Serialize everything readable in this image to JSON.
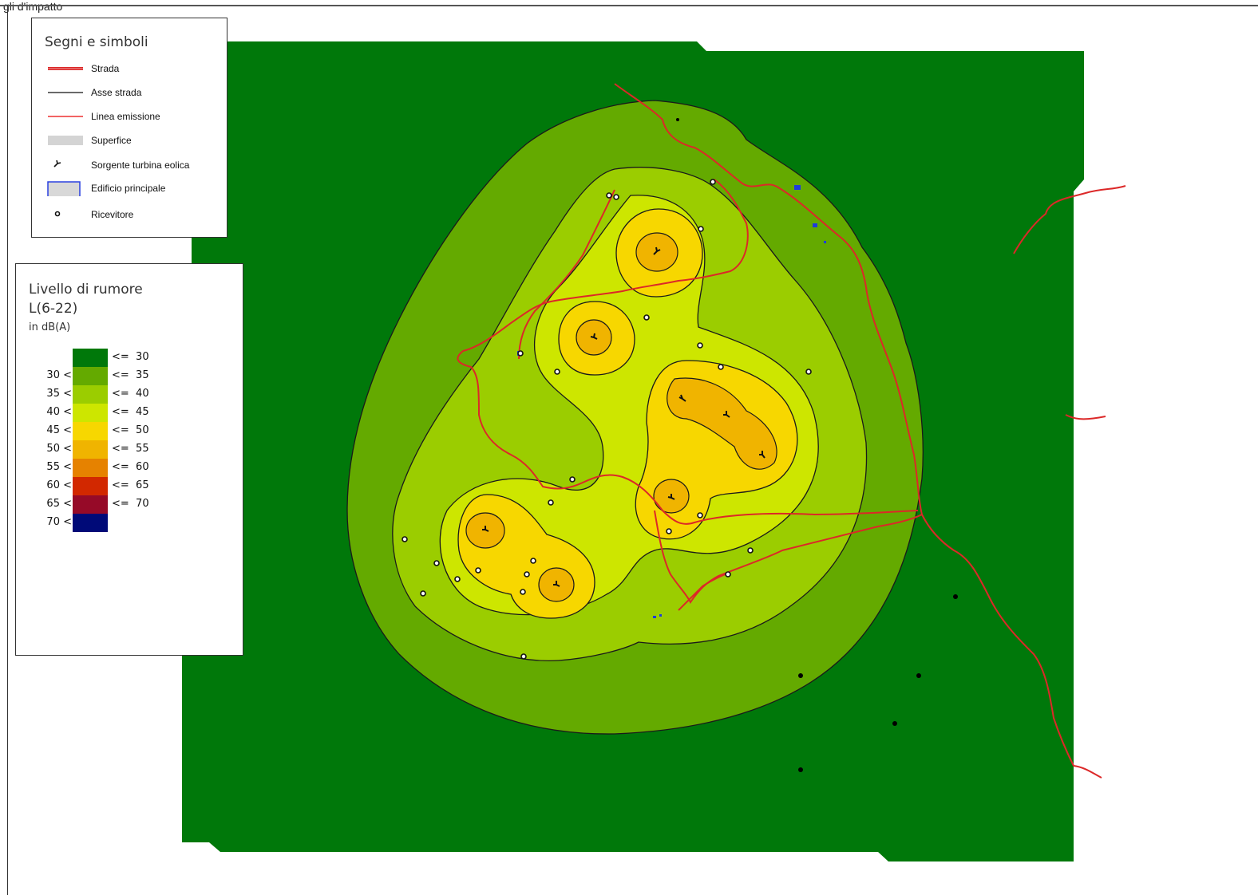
{
  "window": {
    "caption": "gli d'impatto"
  },
  "symbols_legend": {
    "title": "Segni e simboli",
    "items": [
      {
        "key": "road",
        "label": "Strada"
      },
      {
        "key": "road_axis",
        "label": "Asse strada"
      },
      {
        "key": "emission_line",
        "label": "Linea emissione"
      },
      {
        "key": "surface",
        "label": "Superfice"
      },
      {
        "key": "wind_turbine",
        "label": "Sorgente turbina eolica"
      },
      {
        "key": "main_building",
        "label": "Edificio principale"
      },
      {
        "key": "receiver",
        "label": "Ricevitore"
      }
    ]
  },
  "noise_legend": {
    "title_line1": "Livello di rumore",
    "title_line2": "L(6-22)",
    "unit": "in dB(A)",
    "classes": [
      {
        "low": "",
        "high": "<=  30",
        "color": "#00780a"
      },
      {
        "low": "30 <",
        "high": "<=  35",
        "color": "#64aa00"
      },
      {
        "low": "35 <",
        "high": "<=  40",
        "color": "#9bcd00"
      },
      {
        "low": "40 <",
        "high": "<=  45",
        "color": "#cde600"
      },
      {
        "low": "45 <",
        "high": "<=  50",
        "color": "#f7d700"
      },
      {
        "low": "50 <",
        "high": "<=  55",
        "color": "#f0b400"
      },
      {
        "low": "55 <",
        "high": "<=  60",
        "color": "#e68200"
      },
      {
        "low": "60 <",
        "high": "<=  65",
        "color": "#d22800"
      },
      {
        "low": "65 <",
        "high": "<=  70",
        "color": "#960a28"
      },
      {
        "low": "70 <",
        "high": "",
        "color": "#000a78"
      }
    ]
  },
  "colors": {
    "background_area": "#00780a",
    "road": "#dc2828",
    "contour": "#1a1a1a",
    "building": "#1e3cdc"
  }
}
